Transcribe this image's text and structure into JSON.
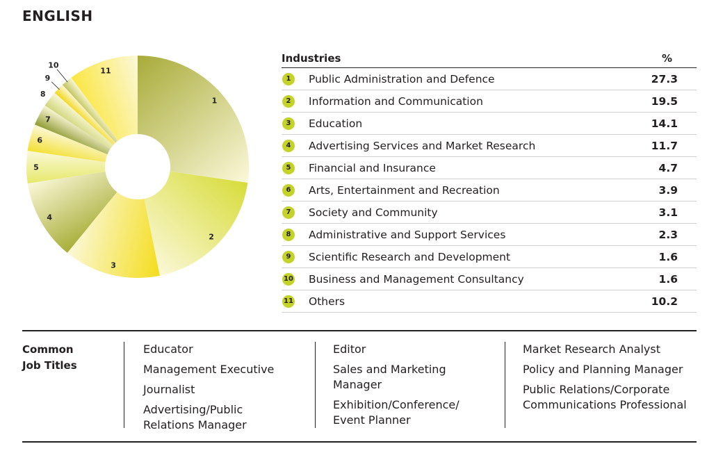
{
  "title": "ENGLISH",
  "table": {
    "header_industries": "Industries",
    "header_pct": "%",
    "rows": [
      {
        "num": "1",
        "industry": "Public Administration and Defence",
        "value": "27.3"
      },
      {
        "num": "2",
        "industry": "Information and Communication",
        "value": "19.5"
      },
      {
        "num": "3",
        "industry": "Education",
        "value": "14.1"
      },
      {
        "num": "4",
        "industry": "Advertising Services and Market Research",
        "value": "11.7"
      },
      {
        "num": "5",
        "industry": "Financial and Insurance",
        "value": "4.7"
      },
      {
        "num": "6",
        "industry": "Arts, Entertainment and Recreation",
        "value": "3.9"
      },
      {
        "num": "7",
        "industry": "Society and Community",
        "value": "3.1"
      },
      {
        "num": "8",
        "industry": "Administrative and Support Services",
        "value": "2.3"
      },
      {
        "num": "9",
        "industry": "Scientific Research and Development",
        "value": "1.6"
      },
      {
        "num": "10",
        "industry": "Business and Management Consultancy",
        "value": "1.6"
      },
      {
        "num": "11",
        "industry": "Others",
        "value": "10.2"
      }
    ]
  },
  "chart_data": {
    "type": "pie",
    "donut": true,
    "labels": [
      "1",
      "2",
      "3",
      "4",
      "5",
      "6",
      "7",
      "8",
      "9",
      "10",
      "11"
    ],
    "values": [
      27.3,
      19.5,
      14.1,
      11.7,
      4.7,
      3.9,
      3.1,
      2.3,
      1.6,
      1.6,
      10.2
    ],
    "colors": [
      "#a8ab3a",
      "#d7dc3a",
      "#f4dd1c",
      "#a7ad38",
      "#e5e86a",
      "#f3df30",
      "#8f9a32",
      "#cfd57a",
      "#f2d615",
      "#c0c25c",
      "#fbe643"
    ],
    "start": "top, clockwise"
  },
  "jobs": {
    "label_line1": "Common",
    "label_line2": "Job Titles",
    "col1": [
      "Educator",
      "Management Executive",
      "Journalist",
      "Advertising/Public Relations Manager"
    ],
    "col2": [
      "Editor",
      "Sales and Marketing Manager",
      "Exhibition/Conference/ Event Planner"
    ],
    "col3": [
      "Market Research Analyst",
      "Policy and Planning Manager",
      "Public Relations/Corporate Communications Professional"
    ]
  }
}
